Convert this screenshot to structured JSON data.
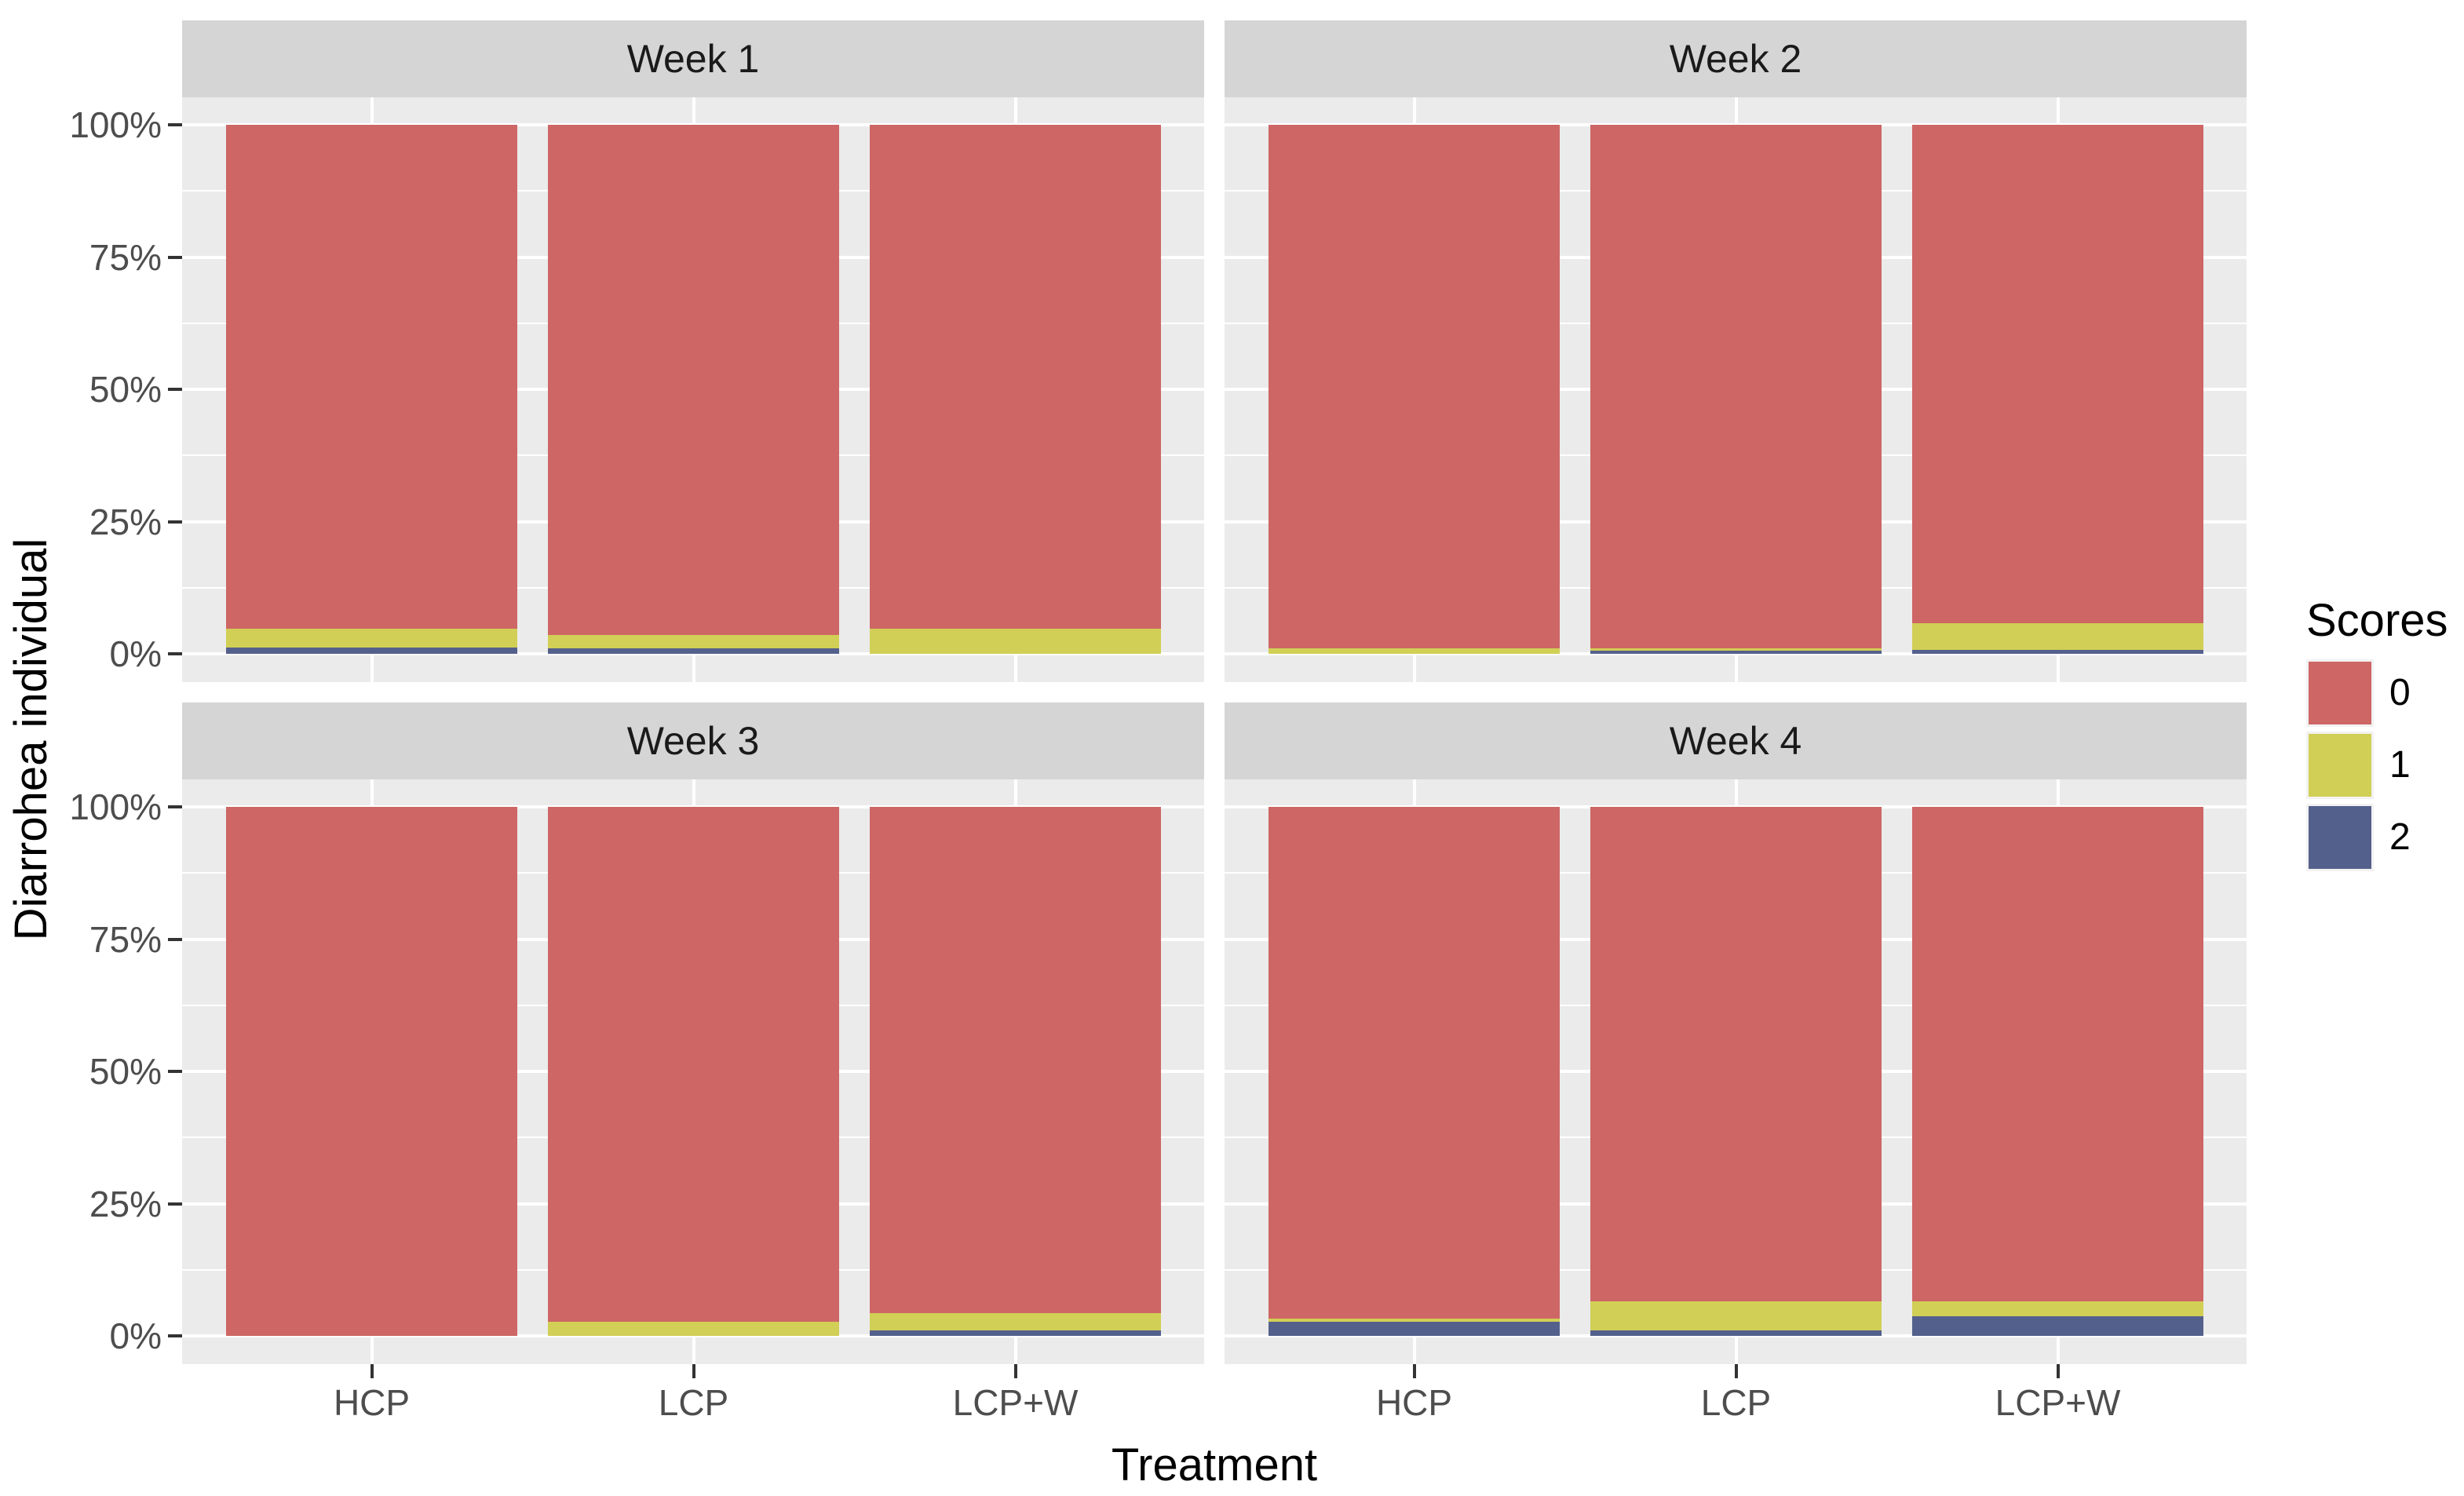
{
  "chart_data": {
    "type": "bar",
    "stacked": true,
    "units": "percent",
    "title": "",
    "xlabel": "Treatment",
    "ylabel": "Diarrohea individual",
    "ylim": [
      0,
      100
    ],
    "grid": true,
    "y_ticks": [
      {
        "label": "0%",
        "value": 0
      },
      {
        "label": "25%",
        "value": 25
      },
      {
        "label": "50%",
        "value": 50
      },
      {
        "label": "75%",
        "value": 75
      },
      {
        "label": "100%",
        "value": 100
      }
    ],
    "y_minor_gridlines": [
      12.5,
      37.5,
      62.5,
      87.5
    ],
    "categories": [
      "HCP",
      "LCP",
      "LCP+W"
    ],
    "legend": {
      "title": "Scores",
      "position": "right",
      "entries": [
        {
          "label": "0",
          "color": "#CD6665"
        },
        {
          "label": "1",
          "color": "#D1CF55"
        },
        {
          "label": "2",
          "color": "#54608C"
        }
      ]
    },
    "facets": [
      {
        "label": "Week 1",
        "series": [
          {
            "name": "0",
            "values": [
              95.3,
              96.4,
              95.3
            ]
          },
          {
            "name": "1",
            "values": [
              3.5,
              2.6,
              4.7
            ]
          },
          {
            "name": "2",
            "values": [
              1.2,
              1.0,
              0.0
            ]
          }
        ]
      },
      {
        "label": "Week 2",
        "series": [
          {
            "name": "0",
            "values": [
              99.0,
              99.0,
              94.2
            ]
          },
          {
            "name": "1",
            "values": [
              1.0,
              0.4,
              5.1
            ]
          },
          {
            "name": "2",
            "values": [
              0.0,
              0.6,
              0.7
            ]
          }
        ]
      },
      {
        "label": "Week 3",
        "series": [
          {
            "name": "0",
            "values": [
              100.0,
              97.4,
              95.7
            ]
          },
          {
            "name": "1",
            "values": [
              0.0,
              2.6,
              3.2
            ]
          },
          {
            "name": "2",
            "values": [
              0.0,
              0.0,
              1.1
            ]
          }
        ]
      },
      {
        "label": "Week 4",
        "series": [
          {
            "name": "0",
            "values": [
              96.8,
              93.5,
              93.5
            ]
          },
          {
            "name": "1",
            "values": [
              0.6,
              5.5,
              2.8
            ]
          },
          {
            "name": "2",
            "values": [
              2.6,
              1.0,
              3.7
            ]
          }
        ]
      }
    ],
    "style": {
      "background": "#FFFFFF",
      "panel_bg": "#EBEBEB",
      "strip_bg": "#D5D5D5",
      "grid_color": "#FFFFFF",
      "tick_color": "#333333",
      "tick_label_color": "#4D4D4D",
      "strip_text_color": "#1A1A1A",
      "title_color": "#000000",
      "legend_key_bg": "#F2F2F2"
    }
  }
}
